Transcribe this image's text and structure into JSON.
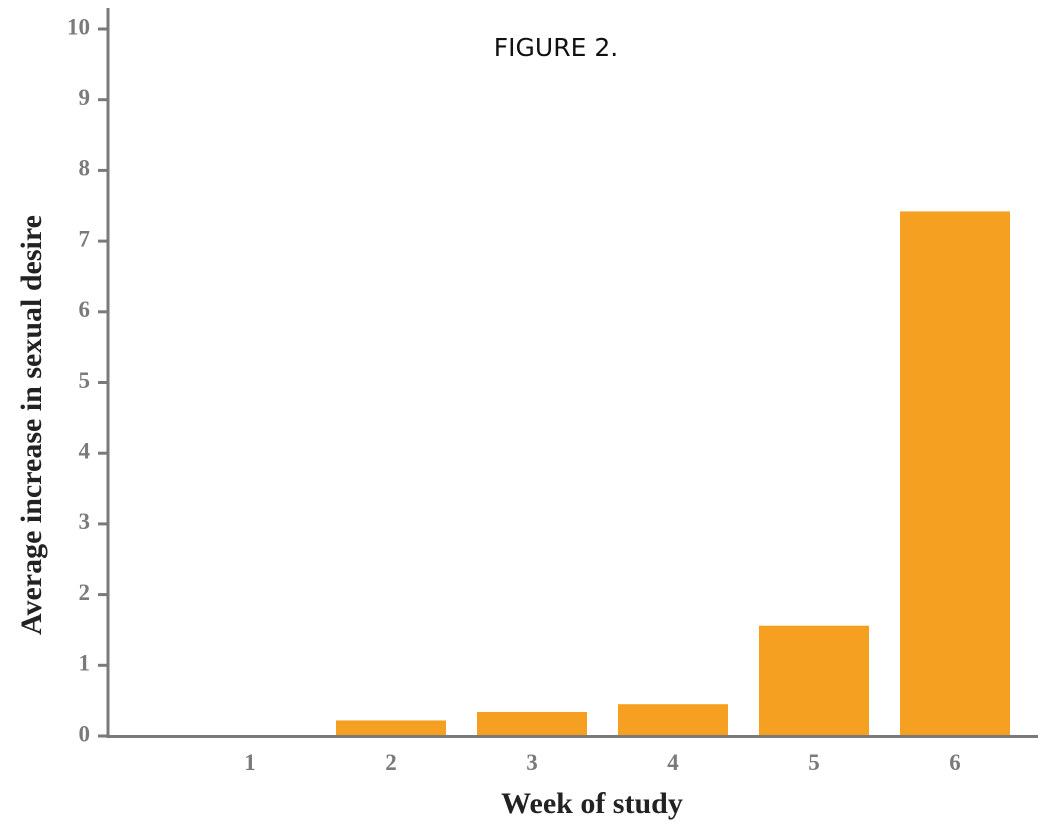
{
  "chart_data": {
    "type": "bar",
    "title": "FIGURE   2.",
    "xlabel": "Week of study",
    "ylabel": "Average increase in sexual desire",
    "categories": [
      "1",
      "2",
      "3",
      "4",
      "5",
      "6"
    ],
    "values": [
      0,
      0.22,
      0.34,
      0.45,
      1.56,
      7.42
    ],
    "ylim": [
      0,
      10
    ],
    "yticks": [
      "0",
      "1",
      "2",
      "3",
      "4",
      "5",
      "6",
      "7",
      "8",
      "9",
      "10"
    ],
    "grid": false,
    "legend": "none",
    "bar_color": "#F5A020",
    "axis_color": "#7a7a7a"
  }
}
